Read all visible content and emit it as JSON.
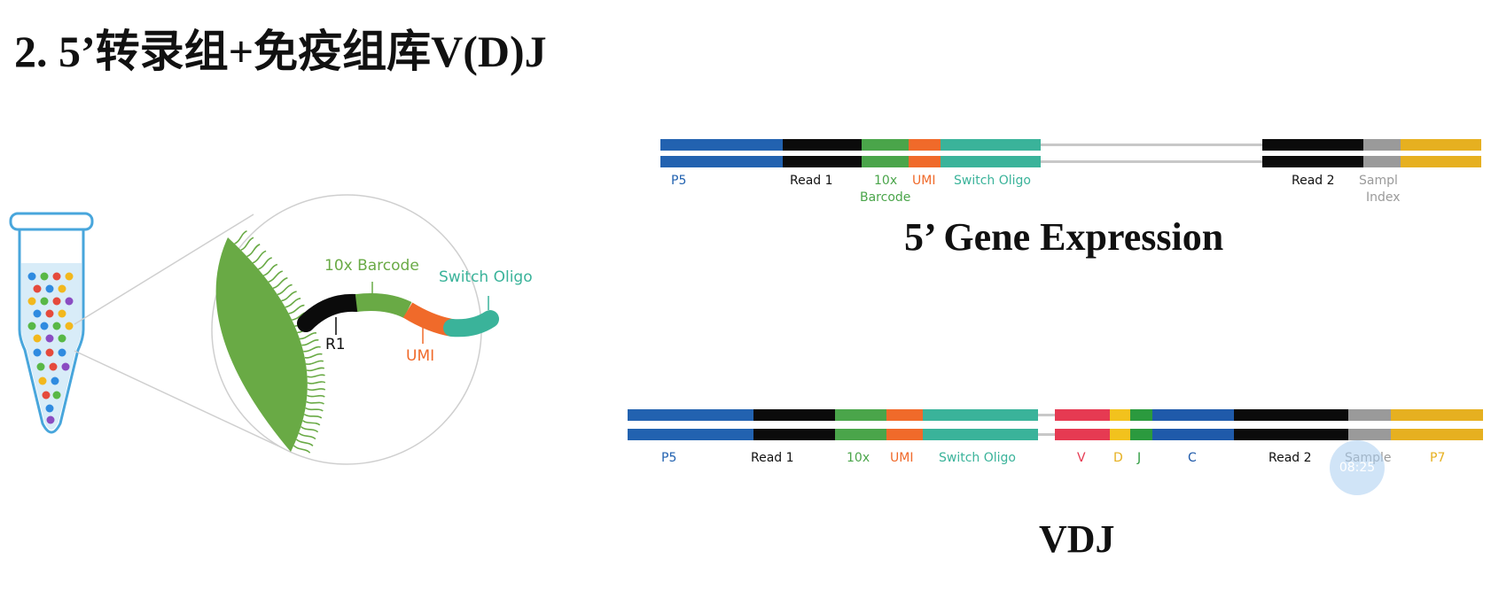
{
  "title": "2. 5’转录组+免疫组库V(D)J",
  "bead": {
    "barcode_label": "10x Barcode",
    "switch_label": "Switch Oligo",
    "r1_label": "R1",
    "umi_label": "UMI"
  },
  "gene_expression": {
    "title": "5’ Gene Expression",
    "labels": {
      "p5": "P5",
      "read1": "Read 1",
      "tenx": "10x",
      "barcode": "Barcode",
      "umi": "UMI",
      "switch": "Switch Oligo",
      "read2": "Read 2",
      "sample": "Sampl",
      "index": "Index"
    }
  },
  "vdj": {
    "title": "VDJ",
    "labels": {
      "p5": "P5",
      "read1": "Read 1",
      "tenx": "10x",
      "umi": "UMI",
      "switch": "Switch Oligo",
      "v": "V",
      "d": "D",
      "j": "J",
      "c": "C",
      "read2": "Read 2",
      "sample": "Sample",
      "p7": "P7"
    }
  },
  "overlay": {
    "clock": "08:25"
  },
  "colors": {
    "p5": "#2262b0",
    "read": "#0b0b0b",
    "barcode": "#4aa54a",
    "umi": "#f06a2a",
    "switch": "#3ab39a",
    "insert": "#c8c8c8",
    "sample": "#9a9a9a",
    "p7": "#e6b020",
    "v": "#e63a52",
    "d": "#f2c21d",
    "j": "#2b9a3e",
    "c": "#1f5aaa",
    "bead": "#69aa45"
  }
}
